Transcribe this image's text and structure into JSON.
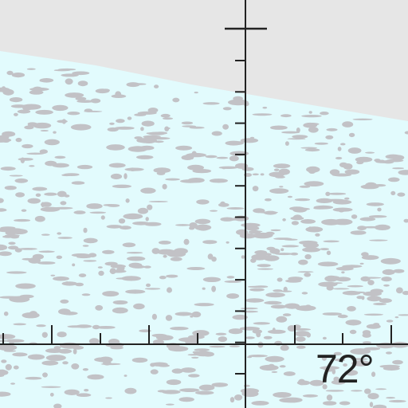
{
  "map": {
    "label": "72°",
    "colors": {
      "land": "#e6e6e6",
      "ice": "#e2fbfd",
      "ice_texture": "#c2c2c6",
      "grid": "#222222"
    }
  }
}
